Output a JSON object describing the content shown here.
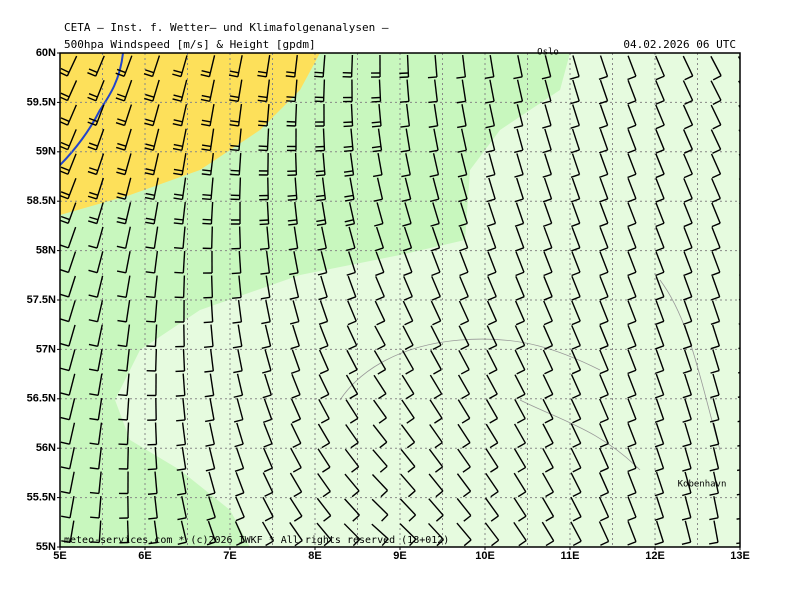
{
  "header": {
    "title": "CETA — Inst. f. Wetter— und Klimafolgenanalysen —",
    "subtitle": "500hpa Windspeed [m/s] & Height [gpdm]",
    "date": "04.02.2026 06 UTC"
  },
  "map": {
    "lat_labels": [
      "60N",
      "59.5N",
      "59N",
      "58.5N",
      "58N",
      "57.5N",
      "57N",
      "56.5N",
      "56N",
      "55.5N",
      "55N"
    ],
    "lon_labels": [
      "5E",
      "6E",
      "7E",
      "8E",
      "9E",
      "10E",
      "11E",
      "12E",
      "13E"
    ],
    "cities": [
      "Oslo",
      "Kobenhavn"
    ]
  },
  "footer": "meteo-services.com * (c)2026 IWKF * All rights reserved (18+012)"
}
